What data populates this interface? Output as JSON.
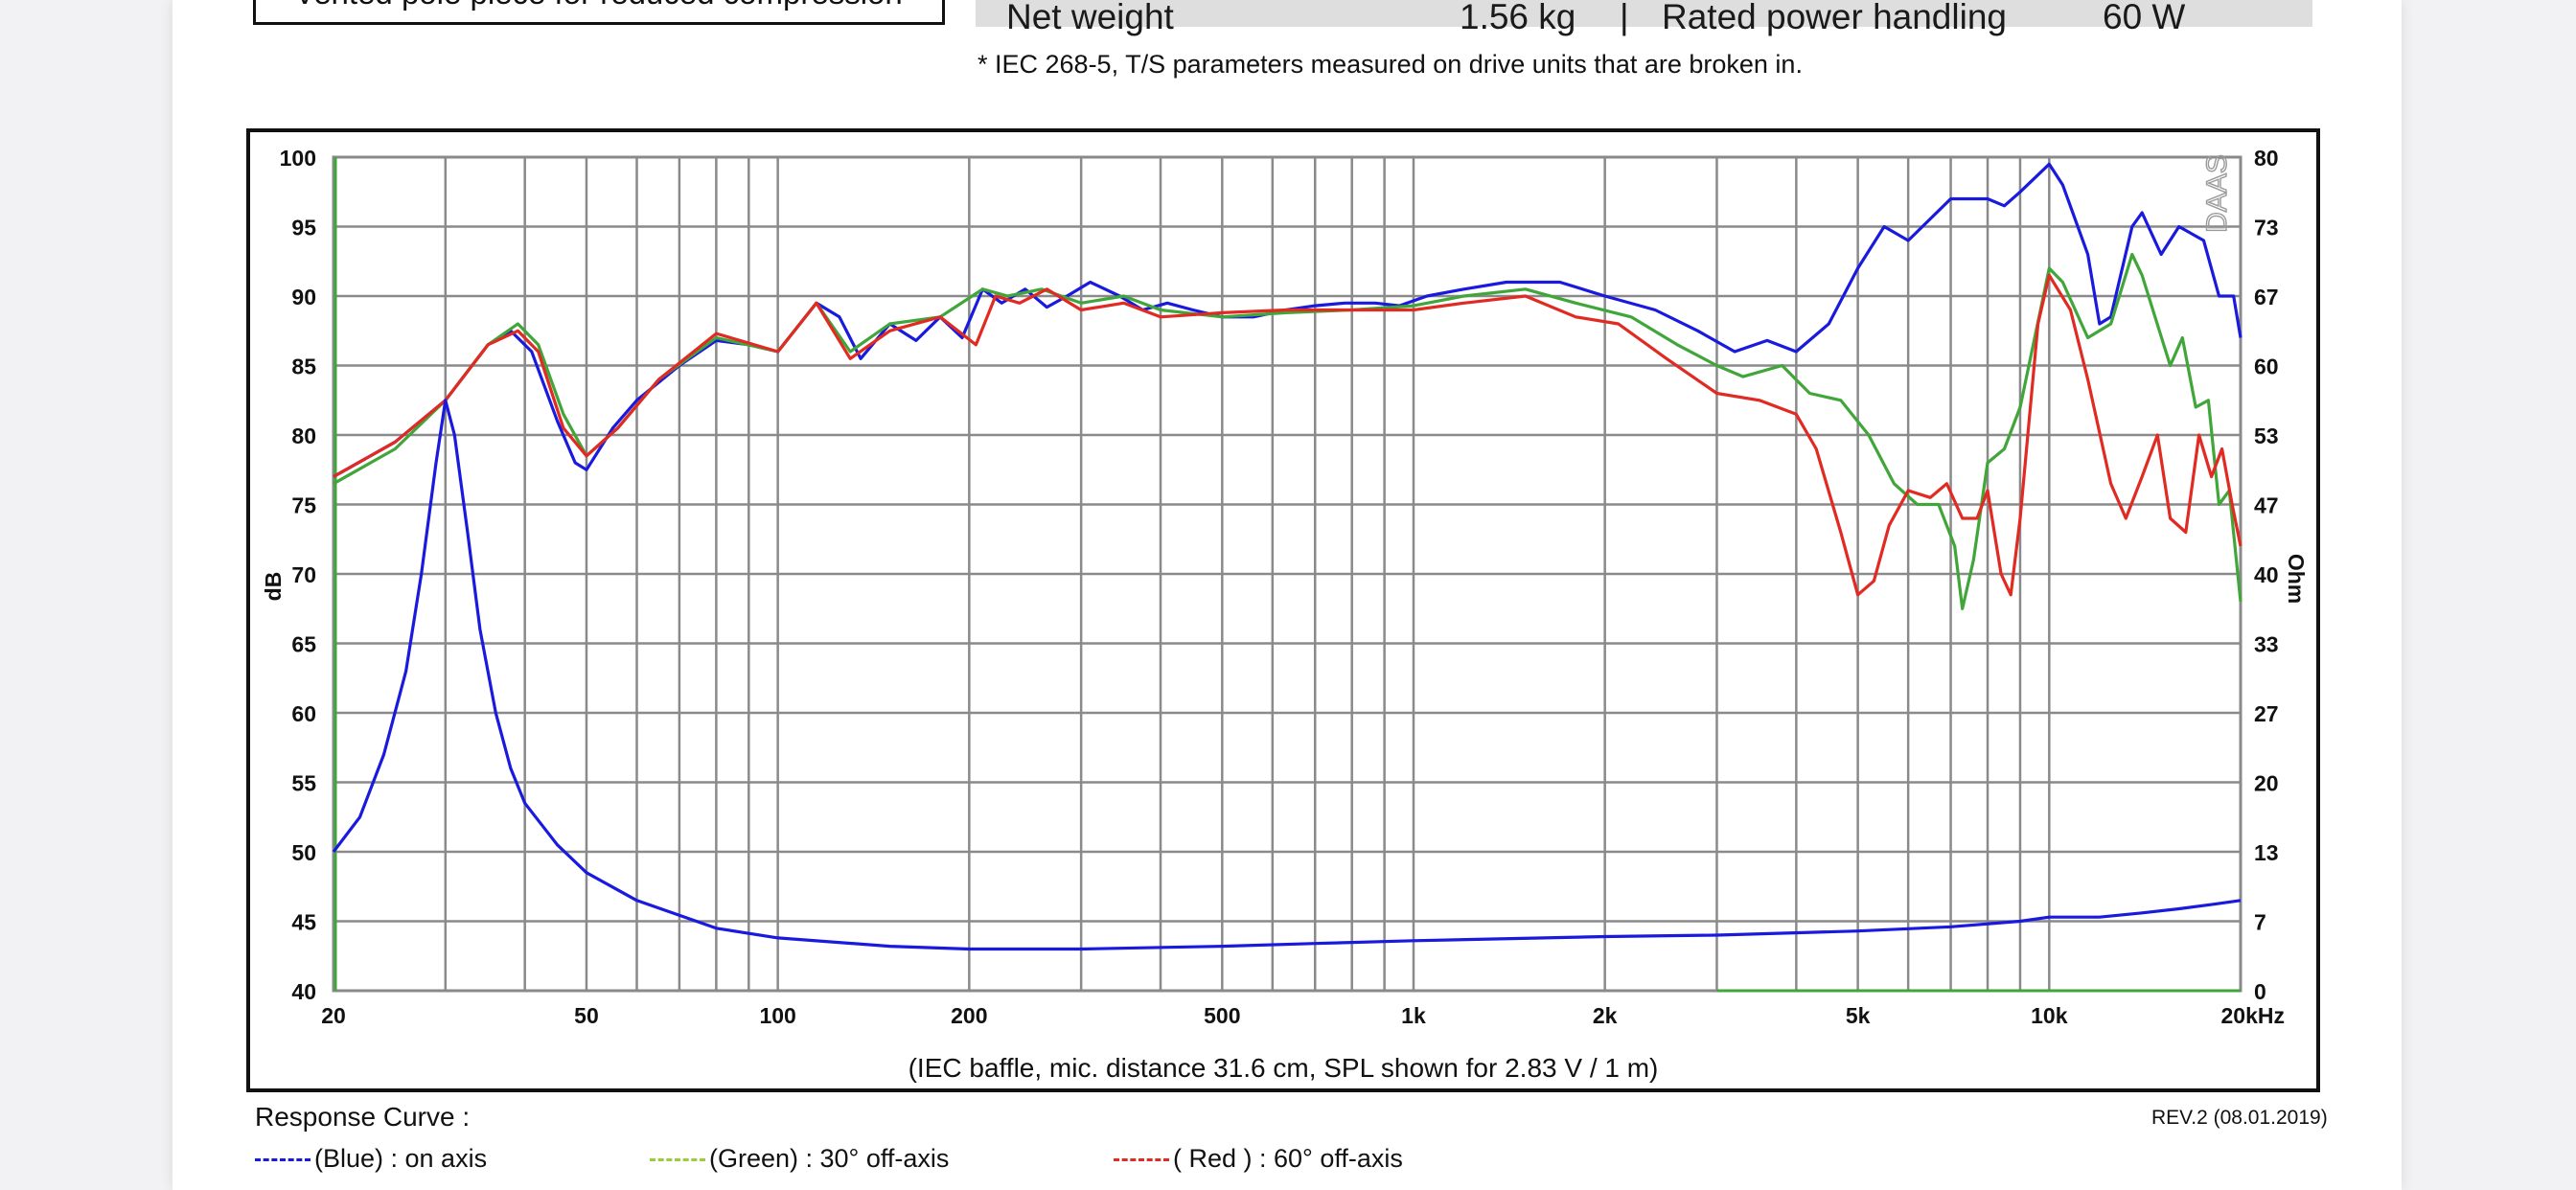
{
  "header": {
    "feature_text": "Vented pole piece for reduced compression",
    "spec_row": [
      {
        "label": "Net weight",
        "value": "1.56 kg"
      },
      {
        "label": "Rated power handling",
        "value": "60 W"
      }
    ],
    "separator": "|",
    "footnote": "* IEC 268-5, T/S parameters measured on drive units that are broken in."
  },
  "chart_data": {
    "type": "line",
    "x_scale": "log",
    "xlim": [
      20,
      20000
    ],
    "x_ticks": [
      20,
      50,
      100,
      200,
      500,
      1000,
      2000,
      5000,
      10000,
      20000
    ],
    "x_tick_labels": [
      "20",
      "50",
      "100",
      "200",
      "500",
      "1k",
      "2k",
      "5k",
      "10k",
      "20kHz"
    ],
    "ylim": [
      40,
      100
    ],
    "y_ticks": [
      40,
      45,
      50,
      55,
      60,
      65,
      70,
      75,
      80,
      85,
      90,
      95,
      100
    ],
    "ylabel": "dB",
    "y2label": "Ohm",
    "y2lim": [
      0,
      80
    ],
    "y2_tick_labels": [
      "0",
      "7",
      "13",
      "20",
      "27",
      "33",
      "40",
      "47",
      "53",
      "60",
      "67",
      "73",
      "80"
    ],
    "watermark": "DAAS",
    "caption": "(IEC baffle, mic. distance 31.6 cm, SPL shown for 2.83 V / 1 m)",
    "grid": true,
    "colors": {
      "blue": "#1a1adf",
      "green": "#41a63a",
      "red": "#e02a22",
      "impedance": "#1a1adf"
    },
    "series": [
      {
        "name": "(Blue)  : on axis",
        "color": "#1a1adf",
        "points": [
          [
            20,
            77
          ],
          [
            25,
            79.5
          ],
          [
            30,
            82.5
          ],
          [
            35,
            86.5
          ],
          [
            38,
            87.5
          ],
          [
            41,
            86
          ],
          [
            45,
            81
          ],
          [
            48,
            78
          ],
          [
            50,
            77.5
          ],
          [
            55,
            80.5
          ],
          [
            60,
            82.5
          ],
          [
            70,
            85
          ],
          [
            80,
            86.8
          ],
          [
            90,
            86.5
          ],
          [
            100,
            86
          ],
          [
            115,
            89.5
          ],
          [
            125,
            88.5
          ],
          [
            135,
            85.5
          ],
          [
            150,
            88
          ],
          [
            165,
            86.8
          ],
          [
            180,
            88.5
          ],
          [
            195,
            87
          ],
          [
            210,
            90.5
          ],
          [
            225,
            89.5
          ],
          [
            245,
            90.5
          ],
          [
            265,
            89.2
          ],
          [
            285,
            90
          ],
          [
            310,
            91
          ],
          [
            345,
            90
          ],
          [
            375,
            89
          ],
          [
            410,
            89.5
          ],
          [
            450,
            89
          ],
          [
            500,
            88.5
          ],
          [
            560,
            88.5
          ],
          [
            630,
            89
          ],
          [
            700,
            89.3
          ],
          [
            780,
            89.5
          ],
          [
            870,
            89.5
          ],
          [
            950,
            89.3
          ],
          [
            1050,
            90
          ],
          [
            1200,
            90.5
          ],
          [
            1400,
            91
          ],
          [
            1700,
            91
          ],
          [
            2000,
            90
          ],
          [
            2400,
            89
          ],
          [
            2800,
            87.5
          ],
          [
            3200,
            86
          ],
          [
            3600,
            86.8
          ],
          [
            4000,
            86
          ],
          [
            4500,
            88
          ],
          [
            5000,
            92
          ],
          [
            5500,
            95
          ],
          [
            6000,
            94
          ],
          [
            7000,
            97
          ],
          [
            8000,
            97
          ],
          [
            8500,
            96.5
          ],
          [
            9000,
            97.5
          ],
          [
            10000,
            99.5
          ],
          [
            10500,
            98
          ],
          [
            11500,
            93
          ],
          [
            12000,
            88
          ],
          [
            12500,
            88.5
          ],
          [
            13500,
            95
          ],
          [
            14000,
            96
          ],
          [
            15000,
            93
          ],
          [
            16000,
            95
          ],
          [
            17500,
            94
          ],
          [
            18500,
            90
          ],
          [
            19500,
            90
          ],
          [
            20000,
            87
          ]
        ]
      },
      {
        "name": "(Green) : 30° off-axis",
        "color": "#41a63a",
        "points": [
          [
            20,
            76.5
          ],
          [
            25,
            79
          ],
          [
            30,
            82.5
          ],
          [
            35,
            86.5
          ],
          [
            39,
            88
          ],
          [
            42,
            86.5
          ],
          [
            46,
            81.5
          ],
          [
            50,
            78.5
          ],
          [
            56,
            80.5
          ],
          [
            65,
            84
          ],
          [
            80,
            87
          ],
          [
            100,
            86
          ],
          [
            115,
            89.5
          ],
          [
            130,
            86
          ],
          [
            150,
            88
          ],
          [
            180,
            88.5
          ],
          [
            210,
            90.5
          ],
          [
            230,
            90
          ],
          [
            260,
            90.5
          ],
          [
            300,
            89.5
          ],
          [
            350,
            90
          ],
          [
            400,
            89
          ],
          [
            500,
            88.5
          ],
          [
            630,
            88.8
          ],
          [
            800,
            89
          ],
          [
            1000,
            89.3
          ],
          [
            1200,
            90
          ],
          [
            1500,
            90.5
          ],
          [
            1800,
            89.5
          ],
          [
            2200,
            88.5
          ],
          [
            2600,
            86.5
          ],
          [
            3000,
            85
          ],
          [
            3300,
            84.2
          ],
          [
            3800,
            85
          ],
          [
            4200,
            83
          ],
          [
            4700,
            82.5
          ],
          [
            5200,
            80
          ],
          [
            5700,
            76.5
          ],
          [
            6200,
            75
          ],
          [
            6700,
            75
          ],
          [
            7100,
            72
          ],
          [
            7300,
            67.5
          ],
          [
            7600,
            71
          ],
          [
            8000,
            78
          ],
          [
            8500,
            79
          ],
          [
            9000,
            82
          ],
          [
            10000,
            92
          ],
          [
            10500,
            91
          ],
          [
            11500,
            87
          ],
          [
            12500,
            88
          ],
          [
            13500,
            93
          ],
          [
            14000,
            91.5
          ],
          [
            15500,
            85
          ],
          [
            16200,
            87
          ],
          [
            17000,
            82
          ],
          [
            17800,
            82.5
          ],
          [
            18500,
            75
          ],
          [
            19200,
            76
          ],
          [
            20000,
            68
          ]
        ]
      },
      {
        "name": "( Red ) : 60° off-axis",
        "color": "#e02a22",
        "points": [
          [
            20,
            77
          ],
          [
            25,
            79.5
          ],
          [
            30,
            82.5
          ],
          [
            35,
            86.5
          ],
          [
            39,
            87.5
          ],
          [
            42,
            86
          ],
          [
            46,
            80.5
          ],
          [
            50,
            78.5
          ],
          [
            56,
            80.5
          ],
          [
            65,
            84
          ],
          [
            80,
            87.3
          ],
          [
            100,
            86
          ],
          [
            115,
            89.5
          ],
          [
            130,
            85.5
          ],
          [
            150,
            87.5
          ],
          [
            180,
            88.5
          ],
          [
            205,
            86.5
          ],
          [
            220,
            90
          ],
          [
            240,
            89.5
          ],
          [
            265,
            90.5
          ],
          [
            300,
            89
          ],
          [
            350,
            89.5
          ],
          [
            400,
            88.5
          ],
          [
            500,
            88.8
          ],
          [
            630,
            89
          ],
          [
            800,
            89
          ],
          [
            1000,
            89
          ],
          [
            1200,
            89.5
          ],
          [
            1500,
            90
          ],
          [
            1800,
            88.5
          ],
          [
            2100,
            88
          ],
          [
            2500,
            85.5
          ],
          [
            3000,
            83
          ],
          [
            3500,
            82.5
          ],
          [
            4000,
            81.5
          ],
          [
            4300,
            79
          ],
          [
            4700,
            73
          ],
          [
            5000,
            68.5
          ],
          [
            5300,
            69.5
          ],
          [
            5600,
            73.5
          ],
          [
            6000,
            76
          ],
          [
            6500,
            75.5
          ],
          [
            6900,
            76.5
          ],
          [
            7300,
            74
          ],
          [
            7700,
            74
          ],
          [
            8000,
            76
          ],
          [
            8400,
            70
          ],
          [
            8700,
            68.5
          ],
          [
            9000,
            74
          ],
          [
            9600,
            88
          ],
          [
            10000,
            91.5
          ],
          [
            10800,
            89
          ],
          [
            11500,
            84
          ],
          [
            12500,
            76.5
          ],
          [
            13200,
            74
          ],
          [
            14000,
            77
          ],
          [
            14800,
            80
          ],
          [
            15500,
            74
          ],
          [
            16400,
            73
          ],
          [
            17200,
            80
          ],
          [
            18000,
            77
          ],
          [
            18700,
            79
          ],
          [
            19400,
            75
          ],
          [
            20000,
            72
          ]
        ]
      },
      {
        "name": "Impedance",
        "color": "#1a1adf",
        "axis": "y2",
        "points": [
          [
            20,
            50
          ],
          [
            22,
            52.5
          ],
          [
            24,
            57
          ],
          [
            26,
            63
          ],
          [
            27.5,
            70
          ],
          [
            29,
            78
          ],
          [
            30,
            82.5
          ],
          [
            31,
            80
          ],
          [
            32.5,
            73
          ],
          [
            34,
            66
          ],
          [
            36,
            60
          ],
          [
            38,
            56
          ],
          [
            40,
            53.5
          ],
          [
            45,
            50.5
          ],
          [
            50,
            48.5
          ],
          [
            60,
            46.5
          ],
          [
            80,
            44.5
          ],
          [
            100,
            43.8
          ],
          [
            150,
            43.2
          ],
          [
            200,
            43
          ],
          [
            300,
            43
          ],
          [
            500,
            43.2
          ],
          [
            700,
            43.4
          ],
          [
            1000,
            43.6
          ],
          [
            2000,
            43.9
          ],
          [
            3000,
            44
          ],
          [
            5000,
            44.3
          ],
          [
            7000,
            44.6
          ],
          [
            9000,
            45
          ],
          [
            10000,
            45.3
          ],
          [
            12000,
            45.3
          ],
          [
            14000,
            45.6
          ],
          [
            16000,
            45.9
          ],
          [
            18000,
            46.2
          ],
          [
            20000,
            46.5
          ]
        ]
      }
    ]
  },
  "legend": {
    "title": "Response Curve :",
    "items": [
      "(Blue)  : on axis",
      "(Green) : 30° off-axis",
      "( Red ) : 60° off-axis"
    ],
    "revision": "REV.2 (08.01.2019)"
  }
}
